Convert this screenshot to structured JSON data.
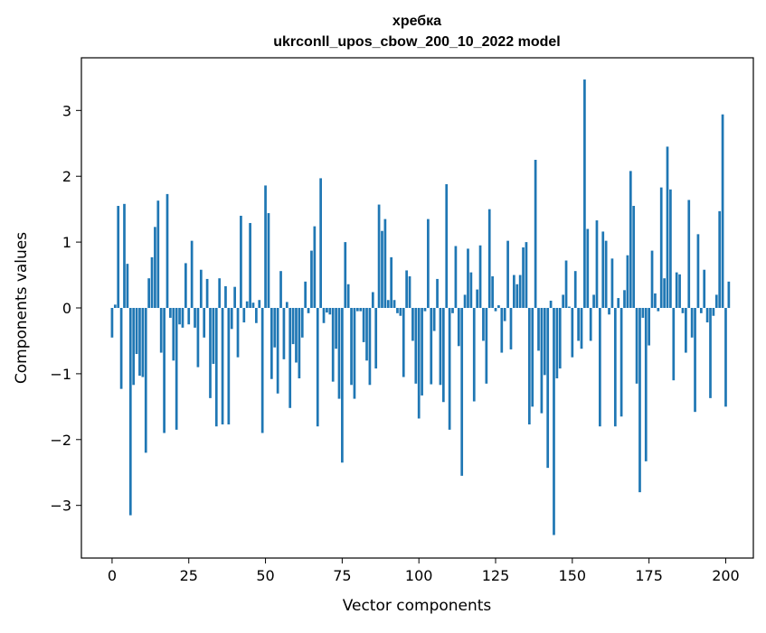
{
  "chart_data": {
    "type": "bar",
    "title": "хребка",
    "subtitle": "ukrconll_upos_cbow_200_10_2022 model",
    "xlabel": "Vector components",
    "ylabel": "Components values",
    "xlim": [
      -10,
      209
    ],
    "ylim": [
      -3.8,
      3.8
    ],
    "x_ticks": [
      0,
      25,
      50,
      75,
      100,
      125,
      150,
      175,
      200
    ],
    "y_ticks": [
      -3,
      -2,
      -1,
      0,
      1,
      2,
      3
    ],
    "grid": false,
    "legend": "none",
    "bar_color": "#1f77b4",
    "values": [
      -0.45,
      0.05,
      1.55,
      -1.23,
      1.58,
      0.67,
      -3.15,
      -1.17,
      -0.7,
      -1.03,
      -1.05,
      -2.2,
      0.45,
      0.77,
      1.23,
      1.63,
      -0.68,
      -1.9,
      1.73,
      -0.15,
      -0.8,
      -1.85,
      -0.25,
      -0.3,
      0.68,
      -0.25,
      1.02,
      -0.3,
      -0.9,
      0.58,
      -0.45,
      0.44,
      -1.37,
      -0.85,
      -1.8,
      0.45,
      -1.77,
      0.33,
      -1.77,
      -0.32,
      0.32,
      -0.75,
      1.4,
      -0.22,
      0.1,
      1.29,
      0.08,
      -0.23,
      0.12,
      -1.9,
      1.86,
      1.44,
      -1.08,
      -0.6,
      -1.3,
      0.56,
      -0.78,
      0.09,
      -1.52,
      -0.55,
      -0.83,
      -1.07,
      -0.45,
      0.4,
      -0.08,
      0.87,
      1.24,
      -1.8,
      1.97,
      -0.23,
      -0.07,
      -0.1,
      -1.12,
      -0.62,
      -1.38,
      -2.35,
      1.0,
      0.36,
      -1.17,
      -1.38,
      -0.05,
      -0.05,
      -0.52,
      -0.8,
      -1.17,
      0.24,
      -0.92,
      1.57,
      1.17,
      1.35,
      0.12,
      0.77,
      0.12,
      -0.08,
      -0.12,
      -1.05,
      0.57,
      0.48,
      -0.5,
      -1.15,
      -1.68,
      -1.33,
      -0.05,
      1.35,
      -1.16,
      -0.35,
      0.44,
      -1.17,
      -1.43,
      1.88,
      -1.85,
      -0.08,
      0.94,
      -0.58,
      -2.55,
      0.2,
      0.9,
      0.54,
      -1.42,
      0.28,
      0.95,
      -0.5,
      -1.15,
      1.5,
      0.48,
      -0.05,
      0.04,
      -0.68,
      -0.2,
      1.02,
      -0.63,
      0.5,
      0.36,
      0.5,
      0.92,
      1.0,
      -1.77,
      -1.5,
      2.25,
      -0.65,
      -1.6,
      -1.02,
      -2.43,
      0.11,
      -3.45,
      -1.07,
      -0.92,
      0.2,
      0.72,
      0.02,
      -0.75,
      0.56,
      -0.5,
      -0.62,
      3.47,
      1.2,
      -0.5,
      0.2,
      1.33,
      -1.8,
      1.16,
      1.02,
      -0.1,
      0.75,
      -1.8,
      0.15,
      -1.65,
      0.27,
      0.8,
      2.08,
      1.55,
      -1.15,
      -2.8,
      -0.15,
      -2.33,
      -0.57,
      0.87,
      0.22,
      -0.05,
      1.83,
      0.45,
      2.45,
      1.8,
      -1.1,
      0.54,
      0.51,
      -0.08,
      -0.68,
      1.64,
      -0.45,
      -1.58,
      1.12,
      -0.08,
      0.58,
      -0.22,
      -1.37,
      -0.12,
      0.2,
      1.47,
      2.94,
      -1.5,
      0.4
    ]
  }
}
